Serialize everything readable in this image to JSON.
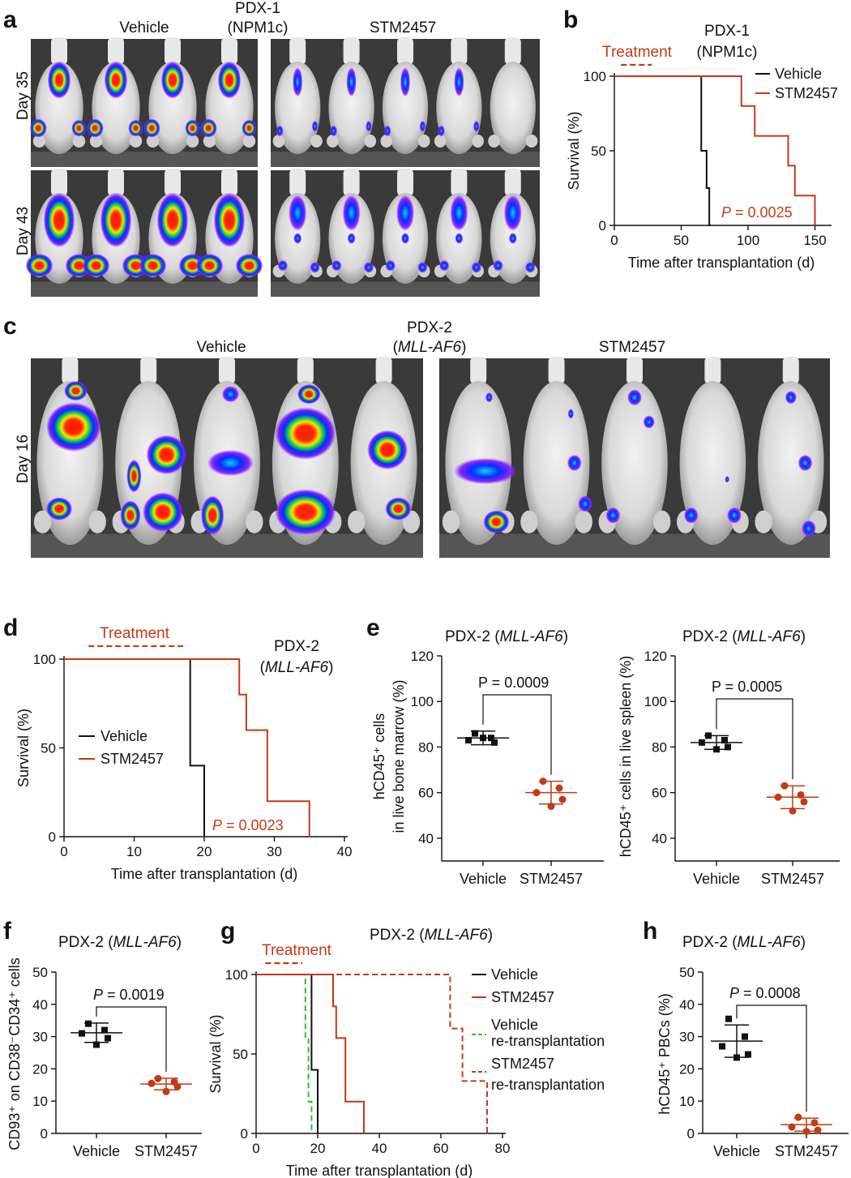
{
  "colors": {
    "vehicle": "#111111",
    "stm": "#c23a17",
    "vehicle_retx": "#2fbf2f",
    "stm_retx": "#c23a17",
    "treatment": "#c23a17",
    "vehicle_marker": "#1a3a8c"
  },
  "panel_a": {
    "label": "a",
    "title_line1": "PDX-1",
    "title_line2": "(NPM1c)",
    "group_vehicle": "Vehicle",
    "group_stm": "STM2457",
    "row1": "Day 35",
    "row2": "Day 43"
  },
  "panel_c": {
    "label": "c",
    "title_line1": "PDX-2",
    "title_line2": "(MLL-AF6)",
    "group_vehicle": "Vehicle",
    "group_stm": "STM2457",
    "row1": "Day 16"
  },
  "charts": {
    "b": {
      "label": "b",
      "title_line1": "PDX-1",
      "title_line2": "(NPM1c)",
      "treatment": "Treatment",
      "xlabel": "Time after transplantation (d)",
      "ylabel": "Survival (%)",
      "xticks": [
        "0",
        "50",
        "100",
        "150"
      ],
      "yticks": [
        "0",
        "50",
        "100"
      ],
      "legend": [
        "Vehicle",
        "STM2457"
      ],
      "p_prefix": "P",
      "p_value": " = 0.0025"
    },
    "d": {
      "label": "d",
      "title_line1": "PDX-2",
      "title_line2_pre": "(",
      "title_line2_it": "MLL-AF6",
      "title_line2_post": ")",
      "treatment": "Treatment",
      "xlabel": "Time after transplantation (d)",
      "ylabel": "Survival (%)",
      "xticks": [
        "0",
        "10",
        "20",
        "30",
        "40"
      ],
      "yticks": [
        "0",
        "50",
        "100"
      ],
      "legend": [
        "Vehicle",
        "STM2457"
      ],
      "p_prefix": "P",
      "p_value": " = 0.0023"
    },
    "e1": {
      "label": "e",
      "title_pre": "PDX-2 (",
      "title_it": "MLL-AF6",
      "title_post": ")",
      "ylabel_line1": "hCD45⁺ cells",
      "ylabel_line2": "in live bone marrow (%)",
      "yticks": [
        "40",
        "60",
        "80",
        "100",
        "120"
      ],
      "xticks": [
        "Vehicle",
        "STM2457"
      ],
      "p_text": "P = 0.0009"
    },
    "e2": {
      "title_pre": "PDX-2 (",
      "title_it": "MLL-AF6",
      "title_post": ")",
      "ylabel": "hCD45⁺ cells in live spleen (%)",
      "yticks": [
        "40",
        "60",
        "80",
        "100",
        "120"
      ],
      "xticks": [
        "Vehicle",
        "STM2457"
      ],
      "p_text": "P = 0.0005"
    },
    "f": {
      "label": "f",
      "title_pre": "PDX-2 (",
      "title_it": "MLL-AF6",
      "title_post": ")",
      "ylabel": "CD93⁺ on CD38⁻CD34⁺ cells",
      "yticks": [
        "0",
        "10",
        "20",
        "30",
        "40",
        "50"
      ],
      "xticks": [
        "Vehicle",
        "STM2457"
      ],
      "p_prefix": "P",
      "p_value": " = 0.0019"
    },
    "g": {
      "label": "g",
      "title_pre": "PDX-2 (",
      "title_it": "MLL-AF6",
      "title_post": ")",
      "treatment": "Treatment",
      "xlabel": "Time after transplantation (d)",
      "ylabel": "Survival (%)",
      "xticks": [
        "0",
        "20",
        "40",
        "60",
        "80"
      ],
      "yticks": [
        "0",
        "50",
        "100"
      ],
      "legend_vehicle": "Vehicle",
      "legend_stm": "STM2457",
      "legend_vehicle_retx_1": "Vehicle",
      "legend_vehicle_retx_2": "re-transplantation",
      "legend_stm_retx_1": "STM2457",
      "legend_stm_retx_2": "re-transplantation"
    },
    "h": {
      "label": "h",
      "title_pre": "PDX-2 (",
      "title_it": "MLL-AF6",
      "title_post": ")",
      "ylabel": "hCD45⁺ PBCs (%)",
      "yticks": [
        "0",
        "10",
        "20",
        "30",
        "40",
        "50"
      ],
      "xticks": [
        "Vehicle",
        "STM2457"
      ],
      "p_prefix": "P",
      "p_value": " = 0.0008"
    }
  },
  "chart_data": [
    {
      "panel": "b",
      "type": "line",
      "xlim": [
        0,
        160
      ],
      "ylim": [
        0,
        100
      ],
      "treatment_window": [
        5,
        28
      ],
      "series": [
        {
          "name": "Vehicle",
          "x": [
            0,
            65,
            69,
            71,
            72
          ],
          "y": [
            100,
            50,
            25,
            0,
            0
          ]
        },
        {
          "name": "STM2457",
          "x": [
            0,
            95,
            105,
            130,
            135,
            150
          ],
          "y": [
            100,
            80,
            60,
            40,
            20,
            0
          ]
        }
      ]
    },
    {
      "panel": "d",
      "type": "line",
      "xlim": [
        0,
        40
      ],
      "ylim": [
        0,
        100
      ],
      "treatment_window": [
        3.5,
        17
      ],
      "series": [
        {
          "name": "Vehicle",
          "x": [
            0,
            18,
            20
          ],
          "y": [
            100,
            40,
            0
          ]
        },
        {
          "name": "STM2457",
          "x": [
            0,
            25,
            26,
            29,
            35
          ],
          "y": [
            100,
            80,
            60,
            20,
            0
          ]
        }
      ]
    },
    {
      "panel": "e1",
      "type": "scatter",
      "ylim": [
        30,
        120
      ],
      "groups": [
        {
          "name": "Vehicle",
          "values": [
            86,
            84,
            83,
            82,
            84
          ],
          "mean": 84,
          "sd": 3
        },
        {
          "name": "STM2457",
          "values": [
            65,
            62,
            60,
            57,
            54
          ],
          "mean": 60,
          "sd": 5
        }
      ]
    },
    {
      "panel": "e2",
      "type": "scatter",
      "ylim": [
        30,
        120
      ],
      "groups": [
        {
          "name": "Vehicle",
          "values": [
            85,
            83,
            82,
            80,
            79
          ],
          "mean": 82,
          "sd": 3
        },
        {
          "name": "STM2457",
          "values": [
            63,
            59,
            58,
            56,
            52
          ],
          "mean": 58,
          "sd": 5
        }
      ]
    },
    {
      "panel": "f",
      "type": "scatter",
      "ylim": [
        0,
        50
      ],
      "groups": [
        {
          "name": "Vehicle",
          "values": [
            34,
            32,
            31,
            29.5,
            27.5
          ],
          "mean": 31.2,
          "sd": 3
        },
        {
          "name": "STM2457",
          "values": [
            17,
            16,
            15.5,
            14.5,
            13
          ],
          "mean": 15.3,
          "sd": 1.8
        }
      ]
    },
    {
      "panel": "g",
      "type": "line",
      "xlim": [
        0,
        80
      ],
      "ylim": [
        0,
        100
      ],
      "treatment_window": [
        3,
        15
      ],
      "series": [
        {
          "name": "Vehicle",
          "style": "solid",
          "x": [
            0,
            18,
            20
          ],
          "y": [
            100,
            40,
            0
          ]
        },
        {
          "name": "STM2457",
          "style": "solid",
          "x": [
            0,
            25,
            26,
            29,
            35
          ],
          "y": [
            100,
            80,
            60,
            20,
            0
          ]
        },
        {
          "name": "Vehicle re-transplantation",
          "style": "dashed",
          "x": [
            0,
            16,
            17,
            18
          ],
          "y": [
            100,
            60,
            20,
            0
          ]
        },
        {
          "name": "STM2457 re-transplantation",
          "style": "dashed",
          "x": [
            0,
            63,
            67,
            75
          ],
          "y": [
            100,
            66,
            33,
            0
          ]
        }
      ]
    },
    {
      "panel": "h",
      "type": "scatter",
      "ylim": [
        0,
        50
      ],
      "groups": [
        {
          "name": "Vehicle",
          "values": [
            35.5,
            30,
            27,
            24.5,
            23.5
          ],
          "mean": 28.6,
          "sd": 5
        },
        {
          "name": "STM2457",
          "values": [
            5,
            3.3,
            2,
            1,
            0.6
          ],
          "mean": 2.7,
          "sd": 2
        }
      ]
    }
  ]
}
